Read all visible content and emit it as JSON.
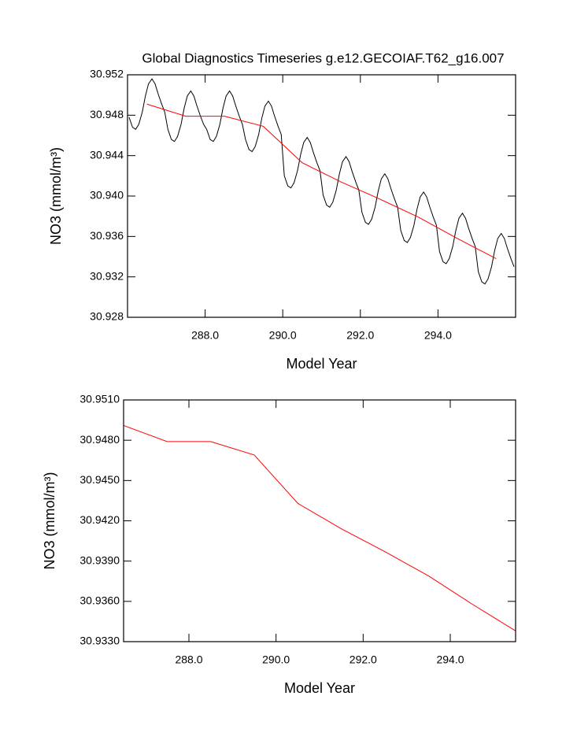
{
  "chart_data": [
    {
      "type": "line",
      "title": "Global Diagnostics Timeseries g.e12.GECOIAF.T62_g16.007",
      "xlabel": "Model Year",
      "ylabel": "NO3 (mmol/m³)",
      "xlim": [
        286.0,
        296.0
      ],
      "ylim": [
        30.928,
        30.952
      ],
      "xticks": [
        {
          "value": 288,
          "label": "288.0"
        },
        {
          "value": 290,
          "label": "290.0"
        },
        {
          "value": 292,
          "label": "292.0"
        },
        {
          "value": 294,
          "label": "294.0"
        }
      ],
      "yticks": [
        30.928,
        30.932,
        30.936,
        {
          "value": 30.94,
          "label": "30.940"
        },
        30.944,
        30.948,
        30.952
      ],
      "series": [
        {
          "color": "#000000",
          "x": [
            286.04,
            286.13,
            286.21,
            286.29,
            286.38,
            286.46,
            286.54,
            286.63,
            286.71,
            286.79,
            286.88,
            286.96,
            287.04,
            287.13,
            287.21,
            287.29,
            287.38,
            287.46,
            287.54,
            287.63,
            287.71,
            287.79,
            287.88,
            287.96,
            288.04,
            288.13,
            288.21,
            288.29,
            288.38,
            288.46,
            288.54,
            288.63,
            288.71,
            288.79,
            288.88,
            288.96,
            289.04,
            289.13,
            289.21,
            289.29,
            289.38,
            289.46,
            289.54,
            289.63,
            289.71,
            289.79,
            289.88,
            289.96,
            290.04,
            290.13,
            290.21,
            290.29,
            290.38,
            290.46,
            290.54,
            290.63,
            290.71,
            290.79,
            290.88,
            290.96,
            291.04,
            291.13,
            291.21,
            291.29,
            291.38,
            291.46,
            291.54,
            291.63,
            291.71,
            291.79,
            291.88,
            291.96,
            292.04,
            292.13,
            292.21,
            292.29,
            292.38,
            292.46,
            292.54,
            292.63,
            292.71,
            292.79,
            292.88,
            292.96,
            293.04,
            293.13,
            293.21,
            293.29,
            293.38,
            293.46,
            293.54,
            293.63,
            293.71,
            293.79,
            293.88,
            293.96,
            294.04,
            294.13,
            294.21,
            294.29,
            294.38,
            294.46,
            294.54,
            294.63,
            294.71,
            294.79,
            294.88,
            294.96,
            295.04,
            295.13,
            295.21,
            295.29,
            295.38,
            295.46,
            295.54,
            295.63,
            295.71,
            295.79,
            295.88,
            295.96
          ],
          "values": [
            30.9478,
            30.9468,
            30.9466,
            30.9471,
            30.9483,
            30.9499,
            30.9511,
            30.9516,
            30.9511,
            30.9501,
            30.9491,
            30.9483,
            30.9466,
            30.9456,
            30.9454,
            30.9459,
            30.9471,
            30.9487,
            30.9499,
            30.9504,
            30.9499,
            30.9489,
            30.9479,
            30.9471,
            30.9466,
            30.9456,
            30.9454,
            30.9459,
            30.9471,
            30.9487,
            30.9499,
            30.9504,
            30.9499,
            30.9489,
            30.9479,
            30.9471,
            30.9456,
            30.9446,
            30.9444,
            30.9449,
            30.9461,
            30.9477,
            30.9489,
            30.9494,
            30.9489,
            30.9479,
            30.9469,
            30.9461,
            30.942,
            30.941,
            30.9408,
            30.9413,
            30.9425,
            30.9441,
            30.9453,
            30.9458,
            30.9453,
            30.9443,
            30.9433,
            30.9425,
            30.9401,
            30.9391,
            30.9389,
            30.9394,
            30.9406,
            30.9422,
            30.9434,
            30.9439,
            30.9434,
            30.9424,
            30.9414,
            30.9406,
            30.9384,
            30.9374,
            30.9372,
            30.9377,
            30.9389,
            30.9405,
            30.9417,
            30.9422,
            30.9417,
            30.9407,
            30.9397,
            30.9389,
            30.9366,
            30.9356,
            30.9354,
            30.9359,
            30.9371,
            30.9387,
            30.9399,
            30.9404,
            30.9399,
            30.9389,
            30.9379,
            30.9371,
            30.9345,
            30.9335,
            30.9333,
            30.9338,
            30.935,
            30.9366,
            30.9378,
            30.9383,
            30.9378,
            30.9368,
            30.9358,
            30.935,
            30.9325,
            30.9315,
            30.9313,
            30.9318,
            30.933,
            30.9346,
            30.9358,
            30.9363,
            30.9358,
            30.9348,
            30.9338,
            30.933
          ]
        },
        {
          "color": "#ff0000",
          "x": [
            286.5,
            287.5,
            288.5,
            289.5,
            290.5,
            291.5,
            292.5,
            293.5,
            294.5,
            295.5
          ],
          "values": [
            30.9491,
            30.9479,
            30.9479,
            30.9469,
            30.9433,
            30.9414,
            30.9397,
            30.9379,
            30.9358,
            30.9338
          ]
        }
      ]
    },
    {
      "type": "line",
      "xlabel": "Model Year",
      "ylabel": "NO3 (mmol/m³)",
      "xlim": [
        286.5,
        295.5
      ],
      "ylim": [
        30.933,
        30.951
      ],
      "xticks": [
        {
          "value": 288,
          "label": "288.0"
        },
        {
          "value": 290,
          "label": "290.0"
        },
        {
          "value": 292,
          "label": "292.0"
        },
        {
          "value": 294,
          "label": "294.0"
        }
      ],
      "yticks": [
        {
          "value": 30.933,
          "label": "30.9330"
        },
        {
          "value": 30.936,
          "label": "30.9360"
        },
        {
          "value": 30.939,
          "label": "30.9390"
        },
        {
          "value": 30.942,
          "label": "30.9420"
        },
        {
          "value": 30.945,
          "label": "30.9450"
        },
        {
          "value": 30.948,
          "label": "30.9480"
        },
        {
          "value": 30.951,
          "label": "30.9510"
        }
      ],
      "series": [
        {
          "color": "#ff0000",
          "x": [
            286.5,
            287.5,
            288.5,
            289.5,
            290.5,
            291.5,
            292.5,
            293.5,
            294.5,
            295.5
          ],
          "values": [
            30.9491,
            30.9479,
            30.9479,
            30.9469,
            30.9433,
            30.9414,
            30.9397,
            30.9379,
            30.9358,
            30.9338
          ]
        }
      ]
    }
  ]
}
